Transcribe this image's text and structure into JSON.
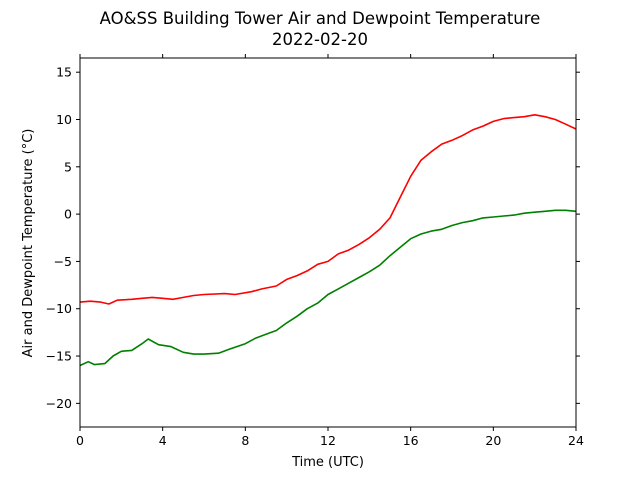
{
  "chart_data": {
    "type": "line",
    "title": "AO&SS Building Tower Air and Dewpoint Temperature",
    "subtitle": "2022-02-20",
    "xlabel": "Time (UTC)",
    "ylabel": "Air and Dewpoint Temperature (°C)",
    "xlim": [
      0,
      24
    ],
    "ylim": [
      -22.5,
      16.5
    ],
    "xticks": [
      0,
      4,
      8,
      12,
      16,
      20,
      24
    ],
    "yticks": [
      -20,
      -15,
      -10,
      -5,
      0,
      5,
      10,
      15
    ],
    "grid": false,
    "legend": "none",
    "series": [
      {
        "color": "#ff0000",
        "points": [
          [
            0,
            -9.3
          ],
          [
            0.5,
            -9.2
          ],
          [
            1,
            -9.3
          ],
          [
            1.4,
            -9.5
          ],
          [
            1.8,
            -9.1
          ],
          [
            2.5,
            -9.0
          ],
          [
            3,
            -8.9
          ],
          [
            3.5,
            -8.8
          ],
          [
            4,
            -8.9
          ],
          [
            4.5,
            -9.0
          ],
          [
            5,
            -8.8
          ],
          [
            5.5,
            -8.6
          ],
          [
            6,
            -8.5
          ],
          [
            7,
            -8.4
          ],
          [
            7.5,
            -8.5
          ],
          [
            8.3,
            -8.2
          ],
          [
            8.8,
            -7.9
          ],
          [
            9.5,
            -7.6
          ],
          [
            10,
            -6.9
          ],
          [
            10.5,
            -6.5
          ],
          [
            11,
            -6.0
          ],
          [
            11.5,
            -5.3
          ],
          [
            12,
            -5.0
          ],
          [
            12.5,
            -4.2
          ],
          [
            13,
            -3.8
          ],
          [
            13.5,
            -3.2
          ],
          [
            14,
            -2.5
          ],
          [
            14.5,
            -1.6
          ],
          [
            15,
            -0.4
          ],
          [
            15.5,
            1.8
          ],
          [
            16,
            4.0
          ],
          [
            16.5,
            5.7
          ],
          [
            17,
            6.6
          ],
          [
            17.5,
            7.4
          ],
          [
            18,
            7.8
          ],
          [
            18.5,
            8.3
          ],
          [
            19,
            8.9
          ],
          [
            19.5,
            9.3
          ],
          [
            20,
            9.8
          ],
          [
            20.5,
            10.1
          ],
          [
            21,
            10.2
          ],
          [
            21.5,
            10.3
          ],
          [
            22,
            10.5
          ],
          [
            22.5,
            10.3
          ],
          [
            23,
            10.0
          ],
          [
            23.5,
            9.5
          ],
          [
            24,
            9.0
          ]
        ]
      },
      {
        "color": "#008000",
        "points": [
          [
            0,
            -16.0
          ],
          [
            0.4,
            -15.6
          ],
          [
            0.7,
            -15.9
          ],
          [
            1.2,
            -15.8
          ],
          [
            1.6,
            -15.0
          ],
          [
            2,
            -14.5
          ],
          [
            2.5,
            -14.4
          ],
          [
            3,
            -13.7
          ],
          [
            3.3,
            -13.2
          ],
          [
            3.8,
            -13.8
          ],
          [
            4.4,
            -14.0
          ],
          [
            5,
            -14.6
          ],
          [
            5.5,
            -14.8
          ],
          [
            6,
            -14.8
          ],
          [
            6.7,
            -14.7
          ],
          [
            7.2,
            -14.3
          ],
          [
            8,
            -13.7
          ],
          [
            8.5,
            -13.1
          ],
          [
            9,
            -12.7
          ],
          [
            9.5,
            -12.3
          ],
          [
            10,
            -11.5
          ],
          [
            10.5,
            -10.8
          ],
          [
            11,
            -10.0
          ],
          [
            11.5,
            -9.4
          ],
          [
            12,
            -8.5
          ],
          [
            12.5,
            -7.9
          ],
          [
            13,
            -7.3
          ],
          [
            13.5,
            -6.7
          ],
          [
            14,
            -6.1
          ],
          [
            14.5,
            -5.4
          ],
          [
            15,
            -4.4
          ],
          [
            15.5,
            -3.5
          ],
          [
            16,
            -2.6
          ],
          [
            16.5,
            -2.1
          ],
          [
            17,
            -1.8
          ],
          [
            17.5,
            -1.6
          ],
          [
            18,
            -1.2
          ],
          [
            18.5,
            -0.9
          ],
          [
            19,
            -0.7
          ],
          [
            19.5,
            -0.4
          ],
          [
            20,
            -0.3
          ],
          [
            20.5,
            -0.2
          ],
          [
            21,
            -0.1
          ],
          [
            21.5,
            0.1
          ],
          [
            22,
            0.2
          ],
          [
            22.5,
            0.3
          ],
          [
            23,
            0.4
          ],
          [
            23.5,
            0.4
          ],
          [
            24,
            0.3
          ]
        ]
      }
    ]
  }
}
